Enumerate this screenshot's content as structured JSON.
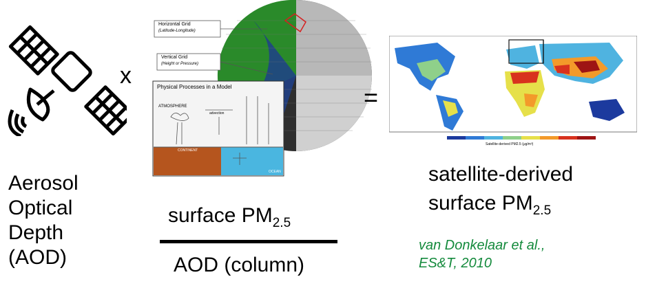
{
  "operators": {
    "multiply": "x",
    "equals": "="
  },
  "aod_label": [
    "Aerosol",
    "Optical",
    "Depth",
    "(AOD)"
  ],
  "ratio": {
    "numerator_text": "surface PM",
    "numerator_subscript": "2.5",
    "denominator": "AOD (column)"
  },
  "result": {
    "line1": "satellite-derived",
    "line2_text": "surface PM",
    "line2_subscript": "2.5"
  },
  "citation": {
    "line1": "van Donkelaar et al.,",
    "line2": "ES&T, 2010"
  },
  "model_figure": {
    "horizontal_grid": "Horizontal Grid",
    "horizontal_grid_sub": "(Latitude-Longitude)",
    "vertical_grid": "Vertical Grid",
    "vertical_grid_sub": "(Height or Pressure)",
    "processes_title": "Physical Processes in a Model",
    "atmosphere": "ATMOSPHERE",
    "continent": "CONTINENT",
    "ocean": "OCEAN",
    "advection": "advection"
  },
  "map_figure": {
    "colorbar_label": "Satellite-derived PM2.5 (μg/m³)",
    "colorbar_colors": [
      "#1c3a9e",
      "#2f7ad6",
      "#4fb3e0",
      "#8fd08a",
      "#e6e04a",
      "#f39a2a",
      "#d8321e",
      "#9e1414"
    ]
  }
}
